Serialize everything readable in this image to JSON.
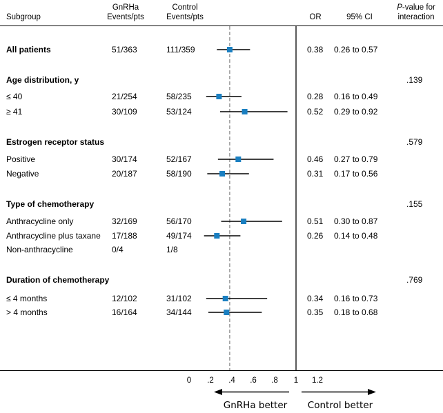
{
  "chart_data": {
    "type": "forest",
    "headers": {
      "subgroup": "Subgroup",
      "gnrha_line1": "GnRHa",
      "gnrha_line2": "Events/pts",
      "control_line1": "Control",
      "control_line2": "Events/pts",
      "or": "OR",
      "ci": "95% CI",
      "pint_italic": "P",
      "pint_line1_rest": "-value for",
      "pint_line2": "interaction"
    },
    "rows": [
      {
        "kind": "data",
        "label": "All patients",
        "bold": true,
        "gnrha": "51/363",
        "control": "111/359",
        "or_text": "0.38",
        "ci_text": "0.26 to 0.57",
        "or": 0.38,
        "lo": 0.26,
        "hi": 0.57
      },
      {
        "kind": "section",
        "label": "Age distribution, y",
        "p": ".139"
      },
      {
        "kind": "data",
        "label": "≤ 40",
        "gnrha": "21/254",
        "control": "58/235",
        "or_text": "0.28",
        "ci_text": "0.16 to 0.49",
        "or": 0.28,
        "lo": 0.16,
        "hi": 0.49
      },
      {
        "kind": "data",
        "label": "≥ 41",
        "gnrha": "30/109",
        "control": "53/124",
        "or_text": "0.52",
        "ci_text": "0.29 to 0.92",
        "or": 0.52,
        "lo": 0.29,
        "hi": 0.92
      },
      {
        "kind": "section",
        "label": "Estrogen receptor status",
        "p": ".579"
      },
      {
        "kind": "data",
        "label": "Positive",
        "gnrha": "30/174",
        "control": "52/167",
        "or_text": "0.46",
        "ci_text": "0.27 to 0.79",
        "or": 0.46,
        "lo": 0.27,
        "hi": 0.79
      },
      {
        "kind": "data",
        "label": "Negative",
        "gnrha": "20/187",
        "control": "58/190",
        "or_text": "0.31",
        "ci_text": "0.17 to 0.56",
        "or": 0.31,
        "lo": 0.17,
        "hi": 0.56
      },
      {
        "kind": "section",
        "label": "Type of chemotherapy",
        "p": ".155"
      },
      {
        "kind": "data",
        "label": "Anthracycline only",
        "gnrha": "32/169",
        "control": "56/170",
        "or_text": "0.51",
        "ci_text": "0.30 to 0.87",
        "or": 0.51,
        "lo": 0.3,
        "hi": 0.87
      },
      {
        "kind": "data",
        "label": "Anthracycline plus taxane",
        "gnrha": "17/188",
        "control": "49/174",
        "or_text": "0.26",
        "ci_text": "0.14 to 0.48",
        "or": 0.26,
        "lo": 0.14,
        "hi": 0.48
      },
      {
        "kind": "data",
        "label": "Non-anthracycline",
        "gnrha": "0/4",
        "control": "1/8",
        "or_text": "",
        "ci_text": "",
        "or": null,
        "lo": null,
        "hi": null
      },
      {
        "kind": "section",
        "label": "Duration of chemotherapy",
        "p": ".769"
      },
      {
        "kind": "data",
        "label": "≤ 4 months",
        "gnrha": "12/102",
        "control": "31/102",
        "or_text": "0.34",
        "ci_text": "0.16 to 0.73",
        "or": 0.34,
        "lo": 0.16,
        "hi": 0.73
      },
      {
        "kind": "data",
        "label": "> 4 months",
        "gnrha": "16/164",
        "control": "34/144",
        "or_text": "0.35",
        "ci_text": "0.18 to 0.68",
        "or": 0.35,
        "lo": 0.18,
        "hi": 0.68
      }
    ],
    "x_ticks": [
      {
        "value": 0,
        "label": "0"
      },
      {
        "value": 0.2,
        "label": ".2"
      },
      {
        "value": 0.4,
        "label": ".4"
      },
      {
        "value": 0.6,
        "label": ".6"
      },
      {
        "value": 0.8,
        "label": ".8"
      },
      {
        "value": 1,
        "label": "1"
      },
      {
        "value": 1.2,
        "label": "1.2"
      }
    ],
    "xlim": [
      0,
      1.3
    ],
    "reference_line": 1,
    "overall_line": 0.38,
    "direction_left": "GnRHa better",
    "direction_right": "Control better",
    "marker_color": "#1a7fc1"
  }
}
